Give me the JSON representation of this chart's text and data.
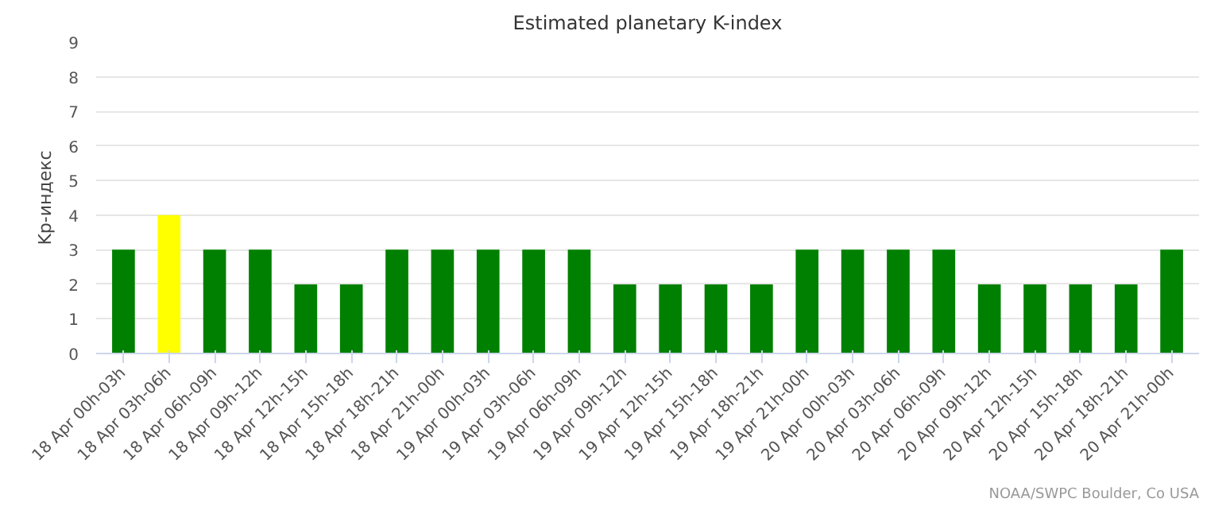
{
  "chart_data": {
    "type": "bar",
    "title": "Estimated planetary K-index",
    "ylabel": "Kp-индекс",
    "categories": [
      "18 Apr 00h-03h",
      "18 Apr 03h-06h",
      "18 Apr 06h-09h",
      "18 Apr 09h-12h",
      "18 Apr 12h-15h",
      "18 Apr 15h-18h",
      "18 Apr 18h-21h",
      "18 Apr 21h-00h",
      "19 Apr 00h-03h",
      "19 Apr 03h-06h",
      "19 Apr 06h-09h",
      "19 Apr 09h-12h",
      "19 Apr 12h-15h",
      "19 Apr 15h-18h",
      "19 Apr 18h-21h",
      "19 Apr 21h-00h",
      "20 Apr 00h-03h",
      "20 Apr 03h-06h",
      "20 Apr 06h-09h",
      "20 Apr 09h-12h",
      "20 Apr 12h-15h",
      "20 Apr 15h-18h",
      "20 Apr 18h-21h",
      "20 Apr 21h-00h"
    ],
    "values": [
      3,
      4,
      3,
      3,
      2,
      2,
      3,
      3,
      3,
      3,
      3,
      2,
      2,
      2,
      2,
      3,
      3,
      3,
      3,
      2,
      2,
      2,
      2,
      3
    ],
    "colors": [
      "#008000",
      "#ffff00",
      "#008000",
      "#008000",
      "#008000",
      "#008000",
      "#008000",
      "#008000",
      "#008000",
      "#008000",
      "#008000",
      "#008000",
      "#008000",
      "#008000",
      "#008000",
      "#008000",
      "#008000",
      "#008000",
      "#008000",
      "#008000",
      "#008000",
      "#008000",
      "#008000",
      "#008000"
    ],
    "ylim": [
      0,
      9
    ],
    "yticks": [
      0,
      1,
      2,
      3,
      4,
      5,
      6,
      7,
      8,
      9
    ],
    "grid": "y",
    "annotations": [
      "NOAA/SWPC Boulder, Co USA"
    ]
  }
}
